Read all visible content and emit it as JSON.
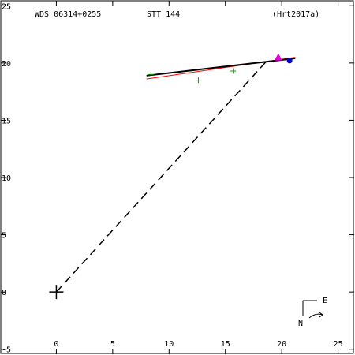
{
  "header": {
    "left": "WDS 06314+0255",
    "center": "STT 144",
    "right": "(Hrt2017a)"
  },
  "compass": {
    "north": "N",
    "east": "E"
  },
  "chart_data": {
    "type": "scatter",
    "x_ticks": [
      0,
      5,
      10,
      15,
      20,
      25
    ],
    "y_ticks": [
      -5,
      0,
      5,
      10,
      15,
      20,
      25
    ],
    "xlim": [
      -5,
      26.5
    ],
    "ylim": [
      -5.5,
      25.5
    ],
    "colors": {
      "fit_red": "#ff0000",
      "fit_black": "#000000",
      "observations": "#00a000",
      "triangle": "#e000e0",
      "circle": "#0000cc",
      "dash": "#000000"
    },
    "primary": [
      0,
      0
    ],
    "observations_plus": [
      [
        8.4,
        19.0
      ],
      [
        12.6,
        18.5
      ],
      [
        15.7,
        19.3
      ]
    ],
    "observation_triangle": [
      19.7,
      20.5
    ],
    "observation_circle": [
      20.7,
      20.2
    ],
    "orbit_red": [
      [
        8.0,
        18.6
      ],
      [
        21.2,
        20.5
      ]
    ],
    "orbit_black": [
      [
        8.0,
        18.9
      ],
      [
        21.2,
        20.4
      ]
    ],
    "dashed_line": [
      [
        0,
        0
      ],
      [
        18.6,
        20.1
      ]
    ]
  }
}
